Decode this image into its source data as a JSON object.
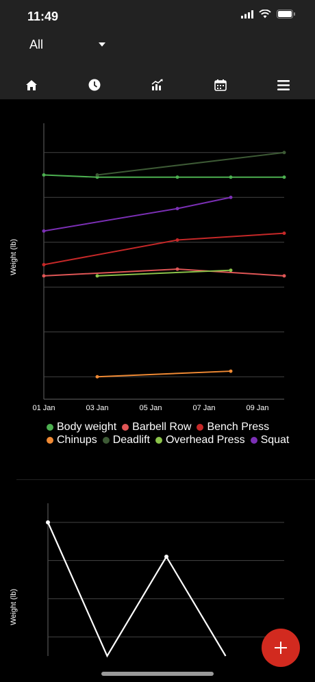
{
  "status_bar": {
    "time": "11:49"
  },
  "filter": {
    "selected": "All"
  },
  "nav": {
    "icons": [
      "home-icon",
      "history-icon",
      "chart-icon",
      "calendar-icon",
      "menu-icon"
    ]
  },
  "colors": {
    "topbar": "#222222",
    "fab": "#d22a1f",
    "body_weight": "#4caf50",
    "barbell_row": "#e05656",
    "bench_press": "#c62828",
    "chinups": "#f08a34",
    "deadlift": "#3d5a35",
    "overhead_press": "#8bc34a",
    "squat": "#7b2fb5"
  },
  "chart_data": [
    {
      "type": "line",
      "ylabel": "Weight (lb)",
      "xlabel": "",
      "x_ticks": [
        "01 Jan",
        "03 Jan",
        "05 Jan",
        "07 Jan",
        "09 Jan"
      ],
      "xlim": [
        "2024-01-01",
        "2024-01-10"
      ],
      "ylim": [
        0,
        12
      ],
      "grid": "horizontal",
      "legend": "bottom",
      "series": [
        {
          "name": "Body weight",
          "color": "#4caf50",
          "points": [
            [
              "2024-01-01",
              10.0
            ],
            [
              "2024-01-03",
              9.9
            ],
            [
              "2024-01-06",
              9.9
            ],
            [
              "2024-01-08",
              9.9
            ],
            [
              "2024-01-10",
              9.9
            ]
          ]
        },
        {
          "name": "Barbell Row",
          "color": "#e05656",
          "points": [
            [
              "2024-01-01",
              5.5
            ],
            [
              "2024-01-06",
              5.8
            ],
            [
              "2024-01-10",
              5.5
            ]
          ]
        },
        {
          "name": "Bench Press",
          "color": "#c62828",
          "points": [
            [
              "2024-01-01",
              6.0
            ],
            [
              "2024-01-06",
              7.1
            ],
            [
              "2024-01-10",
              7.4
            ]
          ]
        },
        {
          "name": "Chinups",
          "color": "#f08a34",
          "points": [
            [
              "2024-01-03",
              1.0
            ],
            [
              "2024-01-08",
              1.25
            ]
          ]
        },
        {
          "name": "Deadlift",
          "color": "#3d5a35",
          "points": [
            [
              "2024-01-03",
              10.0
            ],
            [
              "2024-01-10",
              11.0
            ]
          ]
        },
        {
          "name": "Overhead Press",
          "color": "#8bc34a",
          "points": [
            [
              "2024-01-03",
              5.5
            ],
            [
              "2024-01-08",
              5.75
            ]
          ]
        },
        {
          "name": "Squat",
          "color": "#7b2fb5",
          "points": [
            [
              "2024-01-01",
              7.5
            ],
            [
              "2024-01-06",
              8.5
            ],
            [
              "2024-01-08",
              9.0
            ]
          ]
        }
      ]
    },
    {
      "type": "line",
      "ylabel": "Weight (lb)",
      "xlabel": "",
      "ylim": [
        0,
        4
      ],
      "grid": "horizontal",
      "series": [
        {
          "name": "",
          "color": "#ffffff",
          "values": [
            3.5,
            0,
            2.6,
            0
          ]
        }
      ]
    }
  ]
}
